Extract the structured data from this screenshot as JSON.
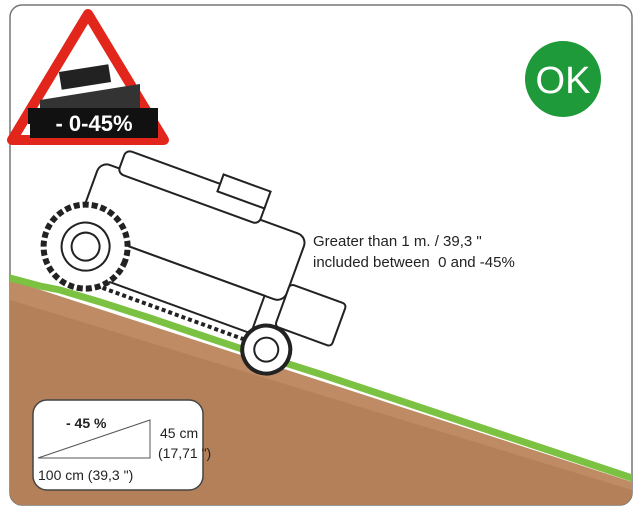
{
  "warning_sign": {
    "label": "- 0-45%"
  },
  "status_badge": {
    "label": "OK"
  },
  "description": {
    "lines": [
      "Greater than 1 m. / 39,3 \"",
      "included between  0 and -45%"
    ]
  },
  "slope_box": {
    "percent": "- 45 %",
    "height": "45 cm",
    "height_inches": "(17,71 \")",
    "length": "100 cm (39,3 \")"
  }
}
